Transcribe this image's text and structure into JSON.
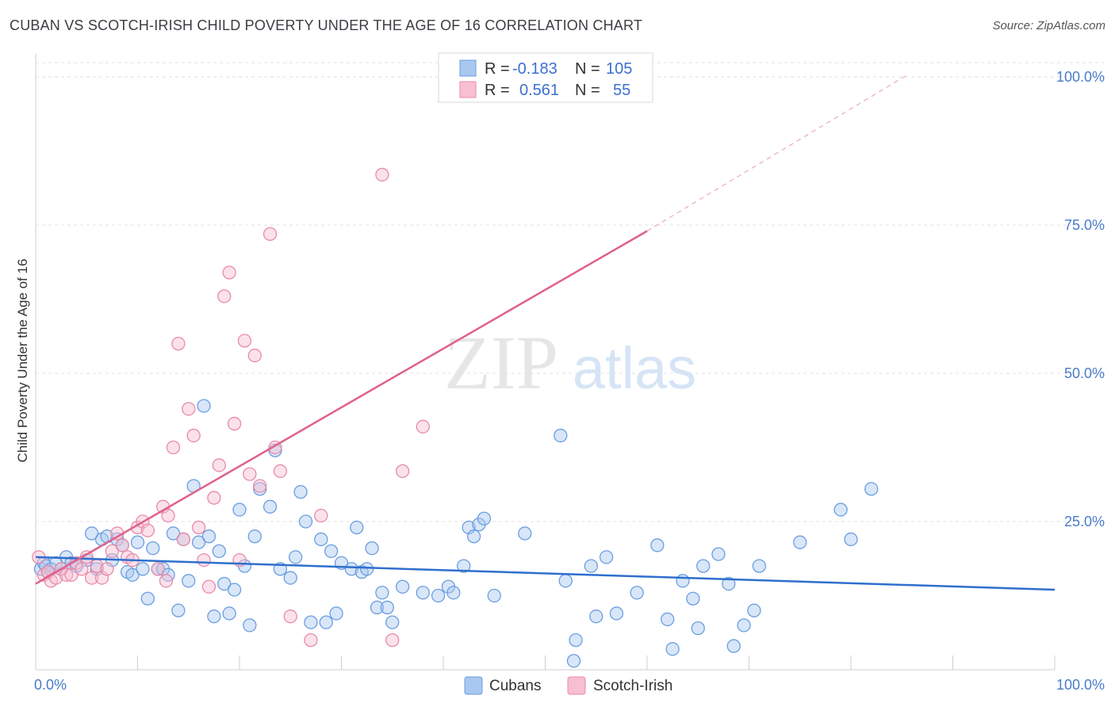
{
  "header": {
    "title": "CUBAN VS SCOTCH-IRISH CHILD POVERTY UNDER THE AGE OF 16 CORRELATION CHART",
    "source": "Source: ZipAtlas.com"
  },
  "watermark": {
    "zip": "ZIP",
    "atlas": "atlas"
  },
  "legend": {
    "rows": [
      {
        "r_label": "R =",
        "r_value": "-0.183",
        "n_label": "N =",
        "n_value": "105",
        "color": "#a9c8f0",
        "stroke": "#6b9ee0"
      },
      {
        "r_label": "R =",
        "r_value": "0.561",
        "n_label": "N =",
        "n_value": "55",
        "color": "#f7bfd1",
        "stroke": "#e88aaa"
      }
    ]
  },
  "bottom_legend": [
    {
      "label": "Cubans",
      "color": "#a9c8f0",
      "stroke": "#6b9ee0"
    },
    {
      "label": "Scotch-Irish",
      "color": "#f7bfd1",
      "stroke": "#e88aaa"
    }
  ],
  "chart_data": {
    "type": "scatter",
    "title": "CUBAN VS SCOTCH-IRISH CHILD POVERTY UNDER THE AGE OF 16 CORRELATION CHART",
    "xlabel": "",
    "ylabel": "Child Poverty Under the Age of 16",
    "xlim": [
      0,
      100
    ],
    "ylim": [
      0,
      100
    ],
    "x_tick_labels": [
      "0.0%",
      "100.0%"
    ],
    "y_ticks": [
      25,
      50,
      75,
      100
    ],
    "y_tick_labels": [
      "25.0%",
      "50.0%",
      "75.0%",
      "100.0%"
    ],
    "grid": true,
    "series": [
      {
        "name": "Cubans",
        "color": "#6b9ee0",
        "fill": "#a9c8f0",
        "trend": {
          "x0": 0,
          "y0": 19.0,
          "x1": 100,
          "y1": 13.5
        },
        "points": [
          [
            0.5,
            17
          ],
          [
            0.8,
            18
          ],
          [
            1,
            17.5
          ],
          [
            1.2,
            16.5
          ],
          [
            1.5,
            17
          ],
          [
            2,
            18
          ],
          [
            2.5,
            17
          ],
          [
            3,
            19
          ],
          [
            3.5,
            18
          ],
          [
            4,
            17.5
          ],
          [
            5,
            18.5
          ],
          [
            5.5,
            23
          ],
          [
            6,
            17
          ],
          [
            6.5,
            22
          ],
          [
            7,
            22.5
          ],
          [
            7.5,
            18.5
          ],
          [
            8,
            22
          ],
          [
            8.5,
            21
          ],
          [
            9,
            16.5
          ],
          [
            9.5,
            16
          ],
          [
            10,
            21.5
          ],
          [
            10.5,
            17
          ],
          [
            11,
            12
          ],
          [
            11.5,
            20.5
          ],
          [
            12,
            17
          ],
          [
            12.5,
            17
          ],
          [
            13,
            16
          ],
          [
            13.5,
            23
          ],
          [
            14,
            10
          ],
          [
            14.5,
            22
          ],
          [
            15,
            15
          ],
          [
            15.5,
            31
          ],
          [
            16,
            21.5
          ],
          [
            16.5,
            44.5
          ],
          [
            17,
            22.5
          ],
          [
            17.5,
            9
          ],
          [
            18,
            20
          ],
          [
            18.5,
            14.5
          ],
          [
            19,
            9.5
          ],
          [
            19.5,
            13.5
          ],
          [
            20,
            27
          ],
          [
            20.5,
            17.5
          ],
          [
            21,
            7.5
          ],
          [
            21.5,
            22.5
          ],
          [
            22,
            30.5
          ],
          [
            23,
            27.5
          ],
          [
            23.5,
            37
          ],
          [
            24,
            17
          ],
          [
            25,
            15.5
          ],
          [
            25.5,
            19
          ],
          [
            26,
            30
          ],
          [
            26.5,
            25
          ],
          [
            27,
            8
          ],
          [
            28,
            22
          ],
          [
            28.5,
            8
          ],
          [
            29,
            20
          ],
          [
            29.5,
            9.5
          ],
          [
            30,
            18
          ],
          [
            31,
            17
          ],
          [
            31.5,
            24
          ],
          [
            32,
            16.5
          ],
          [
            32.5,
            17
          ],
          [
            33,
            20.5
          ],
          [
            33.5,
            10.5
          ],
          [
            34,
            13
          ],
          [
            34.5,
            10.5
          ],
          [
            35,
            8
          ],
          [
            36,
            14
          ],
          [
            38,
            13
          ],
          [
            39.5,
            12.5
          ],
          [
            40.5,
            14
          ],
          [
            41,
            13
          ],
          [
            42,
            17.5
          ],
          [
            42.5,
            24
          ],
          [
            43,
            22.5
          ],
          [
            43.5,
            24.5
          ],
          [
            44,
            25.5
          ],
          [
            45,
            12.5
          ],
          [
            48,
            23
          ],
          [
            51.5,
            39.5
          ],
          [
            52,
            15
          ],
          [
            53,
            5
          ],
          [
            52.8,
            1.5
          ],
          [
            54.5,
            17.5
          ],
          [
            55,
            9
          ],
          [
            56,
            19
          ],
          [
            57,
            9.5
          ],
          [
            59,
            13
          ],
          [
            61,
            21
          ],
          [
            62,
            8.5
          ],
          [
            62.5,
            3.5
          ],
          [
            63.5,
            15
          ],
          [
            64.5,
            12
          ],
          [
            65,
            7
          ],
          [
            65.5,
            17.5
          ],
          [
            67,
            19.5
          ],
          [
            68,
            14.5
          ],
          [
            68.5,
            4
          ],
          [
            69.5,
            7.5
          ],
          [
            70.5,
            10
          ],
          [
            71,
            17.5
          ],
          [
            75,
            21.5
          ],
          [
            79,
            27
          ],
          [
            80,
            22
          ],
          [
            82,
            30.5
          ]
        ]
      },
      {
        "name": "Scotch-Irish",
        "color": "#e88aaa",
        "fill": "#f7bfd1",
        "trend": {
          "x0": 0,
          "y0": 14.5,
          "x1": 60,
          "y1": 74.0,
          "dash_to_x": 100,
          "dash_to_y": 100
        },
        "points": [
          [
            0.3,
            19
          ],
          [
            0.8,
            16
          ],
          [
            1.2,
            16.5
          ],
          [
            1.5,
            15
          ],
          [
            2,
            15.5
          ],
          [
            2.5,
            17
          ],
          [
            3,
            16
          ],
          [
            3.5,
            16
          ],
          [
            4,
            18
          ],
          [
            4.5,
            17
          ],
          [
            5,
            19
          ],
          [
            5.5,
            15.5
          ],
          [
            6,
            17.5
          ],
          [
            6.5,
            15.5
          ],
          [
            7,
            17
          ],
          [
            7.5,
            20
          ],
          [
            8,
            23
          ],
          [
            8.5,
            21
          ],
          [
            9,
            19
          ],
          [
            9.5,
            18.5
          ],
          [
            10,
            24
          ],
          [
            10.5,
            25
          ],
          [
            11,
            23.5
          ],
          [
            12,
            17
          ],
          [
            12.5,
            27.5
          ],
          [
            12.8,
            15
          ],
          [
            13,
            26
          ],
          [
            13.5,
            37.5
          ],
          [
            14,
            55
          ],
          [
            14.5,
            22
          ],
          [
            15,
            44
          ],
          [
            15.5,
            39.5
          ],
          [
            16,
            24
          ],
          [
            16.5,
            18.5
          ],
          [
            17,
            14
          ],
          [
            17.5,
            29
          ],
          [
            18,
            34.5
          ],
          [
            18.5,
            63
          ],
          [
            19,
            67
          ],
          [
            19.5,
            41.5
          ],
          [
            20,
            18.5
          ],
          [
            20.5,
            55.5
          ],
          [
            21,
            33
          ],
          [
            21.5,
            53
          ],
          [
            22,
            31
          ],
          [
            23,
            73.5
          ],
          [
            23.5,
            37.5
          ],
          [
            24,
            33.5
          ],
          [
            25,
            9
          ],
          [
            27,
            5
          ],
          [
            28,
            26
          ],
          [
            34,
            83.5
          ],
          [
            35,
            5
          ],
          [
            36,
            33.5
          ],
          [
            38,
            41
          ]
        ]
      }
    ]
  }
}
